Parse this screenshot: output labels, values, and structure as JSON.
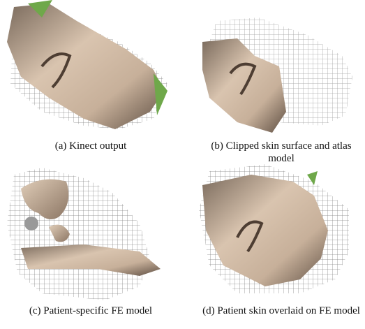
{
  "panels": [
    {
      "caption": "(a) Kinect output"
    },
    {
      "caption": "(b) Clipped skin surface and atlas model"
    },
    {
      "caption": "(c) Patient-specific FE model"
    },
    {
      "caption": "(d) Patient skin overlaid on FE model"
    }
  ]
}
